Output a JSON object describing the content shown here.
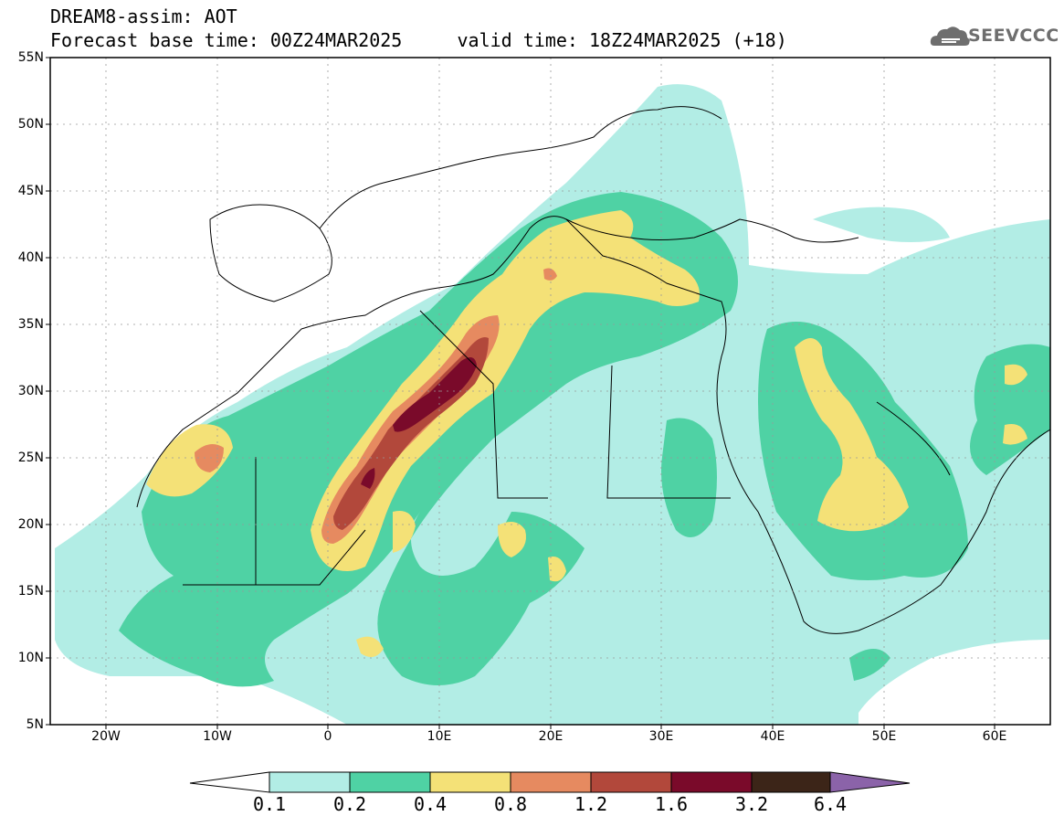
{
  "header": {
    "line1": "DREAM8-assim: AOT",
    "line2": "Forecast base time: 00Z24MAR2025     valid time: 18Z24MAR2025 (+18)"
  },
  "logo": {
    "text": "SEEVCCC"
  },
  "map": {
    "lat_labels": [
      "55N",
      "50N",
      "45N",
      "40N",
      "35N",
      "30N",
      "25N",
      "20N",
      "15N",
      "10N",
      "5N"
    ],
    "lon_labels": [
      "20W",
      "10W",
      "0",
      "10E",
      "20E",
      "30E",
      "40E",
      "50E",
      "60E"
    ]
  },
  "colorbar": {
    "levels": [
      "0.1",
      "0.2",
      "0.4",
      "0.8",
      "1.2",
      "1.6",
      "3.2",
      "6.4"
    ],
    "colors": [
      "#b2ede5",
      "#4fd2a4",
      "#f4e177",
      "#e68a60",
      "#b2483b",
      "#7a0a2a",
      "#3c2518",
      "#8b63a9"
    ]
  }
}
